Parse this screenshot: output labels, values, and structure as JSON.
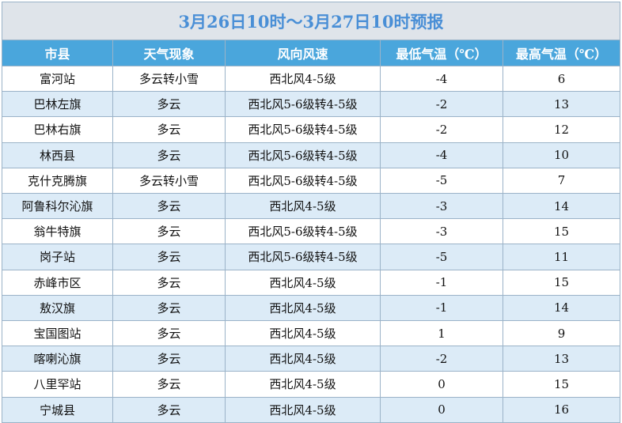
{
  "title": "3月26日10时～3月27日10时预报",
  "table": {
    "header": [
      "市县",
      "天气现象",
      "风向风速",
      "最低气温（℃）",
      "最高气温（℃）"
    ],
    "rows": [
      [
        "富河站",
        "多云转小雪",
        "西北风4-5级",
        -4,
        6
      ],
      [
        "巴林左旗",
        "多云",
        "西北风5-6级转4-5级",
        -2,
        13
      ],
      [
        "巴林右旗",
        "多云",
        "西北风5-6级转4-5级",
        -2,
        12
      ],
      [
        "林西县",
        "多云",
        "西北风5-6级转4-5级",
        -4,
        10
      ],
      [
        "克什克腾旗",
        "多云转小雪",
        "西北风5-6级转4-5级",
        -5,
        7
      ],
      [
        "阿鲁科尔沁旗",
        "多云",
        "西北风4-5级",
        -3,
        14
      ],
      [
        "翁牛特旗",
        "多云",
        "西北风5-6级转4-5级",
        -3,
        15
      ],
      [
        "岗子站",
        "多云",
        "西北风5-6级转4-5级",
        -5,
        11
      ],
      [
        "赤峰市区",
        "多云",
        "西北风4-5级",
        -1,
        15
      ],
      [
        "敖汉旗",
        "多云",
        "西北风4-5级",
        -1,
        14
      ],
      [
        "宝国图站",
        "多云",
        "西北风4-5级",
        1,
        9
      ],
      [
        "喀喇沁旗",
        "多云",
        "西北风4-5级",
        -2,
        13
      ],
      [
        "八里罕站",
        "多云",
        "西北风4-5级",
        0,
        15
      ],
      [
        "宁城县",
        "多云",
        "西北风4-5级",
        0,
        16
      ]
    ]
  }
}
